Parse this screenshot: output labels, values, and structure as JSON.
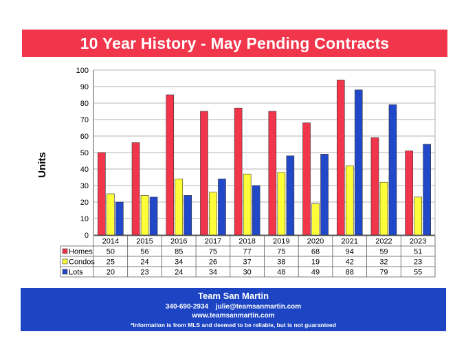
{
  "header": {
    "title": "10 Year History - May Pending Contracts"
  },
  "footer": {
    "company": "Team San Martin",
    "phone": "340-690-2934",
    "email": "julie@teamsanmartin.com",
    "website": "www.teamsanmartin.com",
    "disclaimer": "*Information is from MLS and deemed to be reliable, but is not guaranteed"
  },
  "chart_data": {
    "type": "bar",
    "title": "10 Year History - May Pending Contracts",
    "xlabel": "",
    "ylabel": "Units",
    "ylim": [
      0,
      100
    ],
    "yticks": [
      0,
      10,
      20,
      30,
      40,
      50,
      60,
      70,
      80,
      90,
      100
    ],
    "grid": true,
    "legend": "data-table",
    "categories": [
      "2014",
      "2015",
      "2016",
      "2017",
      "2018",
      "2019",
      "2020",
      "2021",
      "2022",
      "2023"
    ],
    "series": [
      {
        "name": "Homes",
        "color": "#f1364c",
        "values": [
          50,
          56,
          85,
          75,
          77,
          75,
          68,
          94,
          59,
          51
        ]
      },
      {
        "name": "Condos",
        "color": "#fdfd3a",
        "values": [
          25,
          24,
          34,
          26,
          37,
          38,
          19,
          42,
          32,
          23
        ]
      },
      {
        "name": "Lots",
        "color": "#2148c8",
        "values": [
          20,
          23,
          24,
          34,
          30,
          48,
          49,
          88,
          79,
          55
        ]
      }
    ]
  }
}
